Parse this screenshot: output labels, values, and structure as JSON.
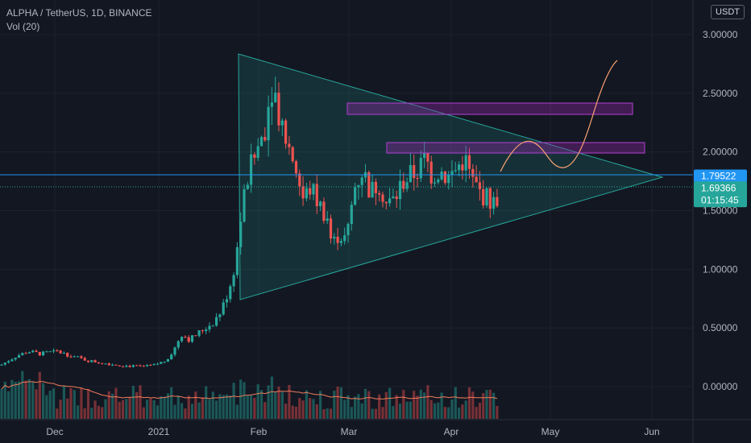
{
  "header": {
    "symbol": "ALPHA / TetherUS, 1D, BINANCE",
    "volume": "Vol (20)",
    "currency": "USDT"
  },
  "chart_data": {
    "type": "candlestick",
    "y_ticks": [
      "3.00000",
      "2.50000",
      "2.00000",
      "1.50000",
      "1.00000",
      "0.50000",
      "0.00000"
    ],
    "y_range": [
      -0.2,
      3.1
    ],
    "x_ticks": [
      "Dec",
      "2021",
      "Feb",
      "Mar",
      "Apr",
      "May",
      "Jun"
    ],
    "price_labels": [
      {
        "value": 1.79522,
        "text": "1.79522",
        "color": "#2196f3"
      },
      {
        "value": 1.69366,
        "text": "1.69366",
        "text2": "01:15:45",
        "color": "#26a69a"
      }
    ],
    "colors": {
      "up": "#26a69a",
      "down": "#ef5350",
      "triangle": "#26a69a",
      "boxes": "#9c27b0",
      "curve": "#f7a172",
      "hline": "#2196f3"
    }
  }
}
